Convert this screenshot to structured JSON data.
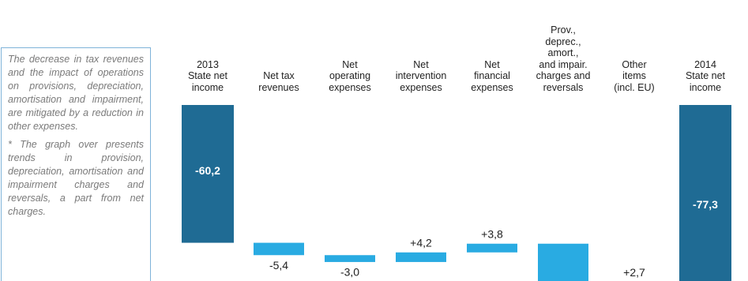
{
  "note": {
    "paragraphs": [
      "The decrease in tax revenues and the impact of operations on provisions, depreciation, amortisation and impairment, are mitigated by a reduction in other expenses.",
      "* The graph over presents trends in provision, depreciation, amortisation and impairment charges and reversals, a part from net charges."
    ]
  },
  "chart_data": {
    "type": "waterfall",
    "categories": [
      "2013\nState net\nincome",
      "Net tax\nrevenues",
      "Net\noperating\nexpenses",
      "Net\nintervention\nexpenses",
      "Net\nfinancial\nexpenses",
      "Prov.,\ndeprec.,\namort.,\nand impair.\ncharges and\nreversals",
      "Other\nitems\n(incl. EU)",
      "2014\nState net\nincome"
    ],
    "values": [
      -60.2,
      -5.4,
      -3.0,
      4.2,
      3.8,
      -19.4,
      2.7,
      -77.3
    ],
    "value_labels": [
      "-60,2",
      "-5,4",
      "-3,0",
      "+4,2",
      "+3,8",
      null,
      "+2,7",
      "-77,3"
    ],
    "total_color": "#1f6b94",
    "change_color": "#29abe2"
  }
}
